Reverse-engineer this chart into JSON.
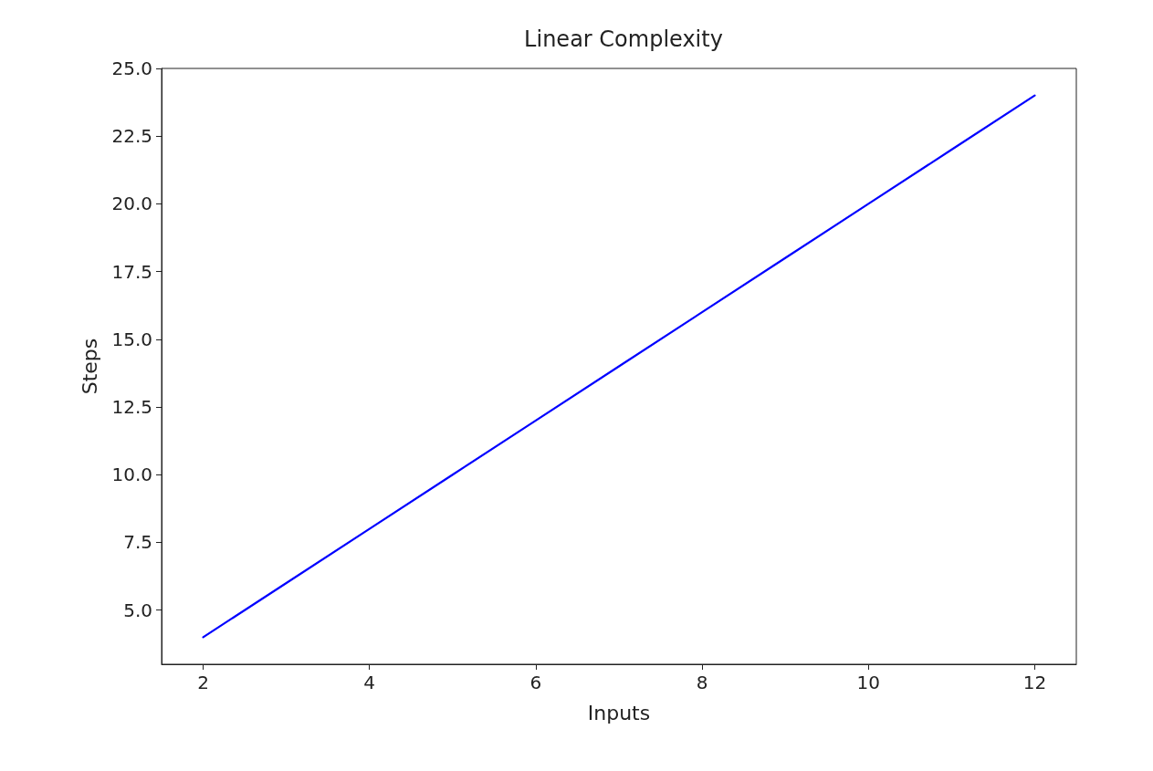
{
  "chart_data": {
    "type": "line",
    "title": "Linear Complexity",
    "xlabel": "Inputs",
    "ylabel": "Steps",
    "x": [
      2,
      3,
      4,
      5,
      6,
      7,
      8,
      9,
      10,
      11,
      12
    ],
    "series": [
      {
        "color": "#0000ff",
        "values": [
          4,
          6,
          8,
          10,
          12,
          14,
          16,
          18,
          20,
          22,
          24
        ]
      }
    ],
    "xlim": [
      1.5,
      12.5
    ],
    "xticks": [
      2,
      4,
      6,
      8,
      10,
      12
    ],
    "ylim": [
      3,
      25
    ],
    "yticks": [
      {
        "value": 5,
        "label": "5.0"
      },
      {
        "value": 7.5,
        "label": "7.5"
      },
      {
        "value": 10,
        "label": "10.0"
      },
      {
        "value": 12.5,
        "label": "12.5"
      },
      {
        "value": 15,
        "label": "15.0"
      },
      {
        "value": 17.5,
        "label": "17.5"
      },
      {
        "value": 20,
        "label": "20.0"
      },
      {
        "value": 22.5,
        "label": "22.5"
      },
      {
        "value": 25,
        "label": "25.0"
      }
    ],
    "grid": false,
    "marker": "none",
    "line_style": "solid"
  }
}
